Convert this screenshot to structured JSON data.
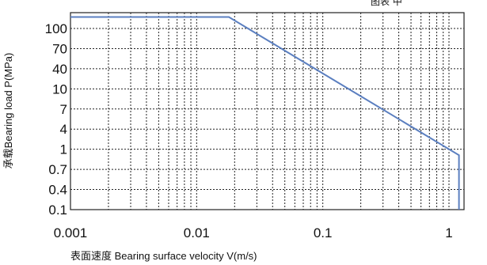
{
  "header": {
    "fragment": "图表 中"
  },
  "chart_data": {
    "type": "line",
    "title": "",
    "xlabel": "表面速度 Bearing surface velocity V(m/s)",
    "ylabel": "承载Bearing load P(MPa)",
    "x_scale": "log",
    "y_scale": "categorical-log",
    "grid": true,
    "x_ticks": [
      {
        "value": 0.001,
        "label": "0.001"
      },
      {
        "value": 0.01,
        "label": "0.01"
      },
      {
        "value": 0.1,
        "label": "0.1"
      },
      {
        "value": 1,
        "label": "1"
      }
    ],
    "y_ticks": [
      "100",
      "70",
      "40",
      "10",
      "7",
      "4",
      "1",
      "0.7",
      "0.4",
      "0.1"
    ],
    "series": [
      {
        "color": "#5b7fc0",
        "points": [
          {
            "x": 0.001,
            "y": 150
          },
          {
            "x": 0.018,
            "y": 150
          },
          {
            "x": 1.2,
            "y": 0.9
          },
          {
            "x": 1.2,
            "y": 0.1
          }
        ]
      }
    ]
  }
}
